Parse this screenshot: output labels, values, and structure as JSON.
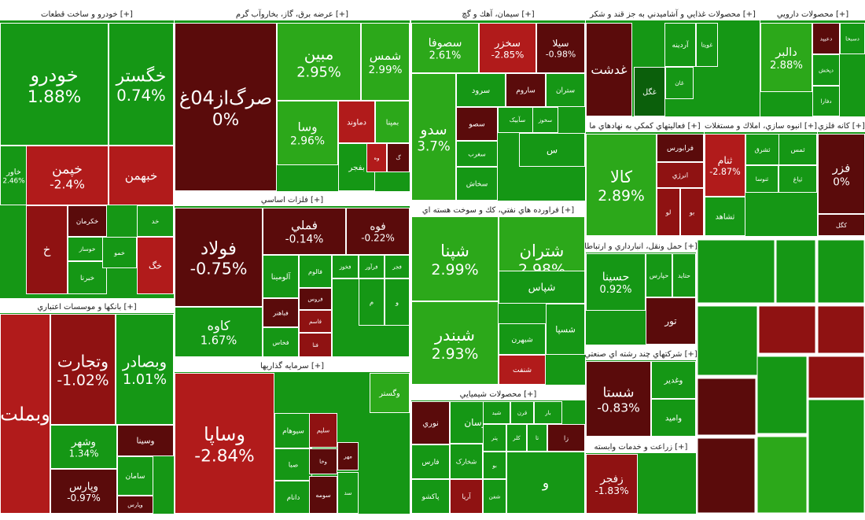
{
  "chart_data": {
    "type": "heatmap",
    "title": "",
    "value_unit": "%",
    "colors": {
      "strong_up": "#2ca81a",
      "up": "#159715",
      "flat_up": "#0b5f0b",
      "dark_down": "#5a0b0b",
      "down": "#8f1212",
      "strong_down": "#b11b1b",
      "header_bg": "#ffffff",
      "header_text": "#222222",
      "border": "#ffffff"
    },
    "sectors": [
      {
        "title": "خودرو و ساخت قطعات [+]",
        "stocks": [
          {
            "name": "خودرو",
            "change": 1.88
          },
          {
            "name": "خگستر",
            "change": 0.74
          },
          {
            "name": "خاور",
            "change": 2.46
          },
          {
            "name": "خپمن",
            "change": -2.4
          },
          {
            "name": "خبهمن",
            "change": null
          },
          {
            "name": "خکرمان",
            "change": null
          },
          {
            "name": "خوساز",
            "change": null
          },
          {
            "name": "خبرنا",
            "change": null
          },
          {
            "name": "خمو",
            "change": null
          },
          {
            "name": "خد",
            "change": null
          },
          {
            "name": "خگ",
            "change": null
          },
          {
            "name": "خ",
            "change": null
          }
        ]
      },
      {
        "title": "عرضه برق، گاز، بخاروآب گرم [+]",
        "stocks": [
          {
            "name": "صرگ‌از04غ",
            "change": 0
          },
          {
            "name": "مبین",
            "change": 2.95
          },
          {
            "name": "شمس",
            "change": 2.99
          },
          {
            "name": "وسا",
            "change": 2.96
          },
          {
            "name": "دماوند",
            "change": null
          },
          {
            "name": "بمپنا",
            "change": null
          },
          {
            "name": "بفجر",
            "change": null
          },
          {
            "name": "وه",
            "change": null
          },
          {
            "name": "گ",
            "change": null
          }
        ]
      },
      {
        "title": "فلزات اساسي [+]",
        "stocks": [
          {
            "name": "فولاد",
            "change": -0.75
          },
          {
            "name": "فملي",
            "change": -0.14
          },
          {
            "name": "فوه",
            "change": -0.22
          },
          {
            "name": "کاوه",
            "change": 1.67
          },
          {
            "name": "آلومينا",
            "change": null
          },
          {
            "name": "فالوم",
            "change": null
          },
          {
            "name": "فخوز",
            "change": null
          },
          {
            "name": "فرآور",
            "change": null
          },
          {
            "name": "فجر",
            "change": null
          },
          {
            "name": "فروس",
            "change": null
          },
          {
            "name": "فباهنر",
            "change": null
          },
          {
            "name": "فخاس",
            "change": null
          },
          {
            "name": "فاسم",
            "change": null
          },
          {
            "name": "فنا",
            "change": null
          },
          {
            "name": "فيتا",
            "change": null
          },
          {
            "name": "م",
            "change": null
          },
          {
            "name": "و",
            "change": null
          }
        ]
      },
      {
        "title": "سيمان، آهك و گچ [+]",
        "stocks": [
          {
            "name": "سصوفا",
            "change": 2.61
          },
          {
            "name": "سخزر",
            "change": -2.85
          },
          {
            "name": "سيلا",
            "change": -0.98
          },
          {
            "name": "سرود",
            "change": null
          },
          {
            "name": "ساروم",
            "change": null
          },
          {
            "name": "ستران",
            "change": null
          },
          {
            "name": "سصو",
            "change": null
          },
          {
            "name": "سآبيک",
            "change": null
          },
          {
            "name": "سخوز",
            "change": null
          },
          {
            "name": "سغرب",
            "change": null
          },
          {
            "name": "سخاش",
            "change": null
          },
          {
            "name": "س",
            "change": null
          },
          {
            "name": "سدو",
            "change": 3.7
          }
        ]
      },
      {
        "title": "فراورده هاي نفتي، كك و سوخت هسته اي [+]",
        "stocks": [
          {
            "name": "شپنا",
            "change": 2.99
          },
          {
            "name": "شبندر",
            "change": 2.93
          },
          {
            "name": "شتران",
            "change": 2.98
          },
          {
            "name": "شپاس",
            "change": null
          },
          {
            "name": "شبهرن",
            "change": null
          },
          {
            "name": "شسپا",
            "change": null
          },
          {
            "name": "شنفت",
            "change": null
          }
        ]
      },
      {
        "title": "محصولات شيميايي [+]",
        "stocks": [
          {
            "name": "نوري",
            "change": null
          },
          {
            "name": "پارسان",
            "change": null
          },
          {
            "name": "شخارک",
            "change": null
          },
          {
            "name": "فارس",
            "change": null
          },
          {
            "name": "آريا",
            "change": null
          },
          {
            "name": "پاکشو",
            "change": null
          },
          {
            "name": "شفن",
            "change": null
          },
          {
            "name": "شيد",
            "change": null
          },
          {
            "name": "قرن",
            "change": null
          },
          {
            "name": "بار",
            "change": null
          },
          {
            "name": "پتر",
            "change": null
          },
          {
            "name": "کلر",
            "change": null
          },
          {
            "name": "تا",
            "change": null
          },
          {
            "name": "زا",
            "change": null
          },
          {
            "name": "بو",
            "change": null
          },
          {
            "name": "و",
            "change": null
          }
        ]
      },
      {
        "title": "محصولات غذايي و آشاميدني به جز قند و شكر [+]",
        "stocks": [
          {
            "name": "آردينه",
            "change": null
          },
          {
            "name": "غويتا",
            "change": null
          },
          {
            "name": "غگل",
            "change": null
          },
          {
            "name": "غان",
            "change": null
          },
          {
            "name": "غدشت",
            "change": null
          }
        ]
      },
      {
        "title": "محصولات دارويي [+]",
        "stocks": [
          {
            "name": "دعبيد",
            "change": null
          },
          {
            "name": "دفارا",
            "change": null
          },
          {
            "name": "دپخش",
            "change": null
          },
          {
            "name": "دسبحا",
            "change": null
          },
          {
            "name": "دالبر",
            "change": 2.88
          }
        ]
      },
      {
        "title": "فعاليتهاي كمكي به نهادهاي ما [+]",
        "stocks": [
          {
            "name": "کالا",
            "change": 2.89
          },
          {
            "name": "فرابورس",
            "change": null
          },
          {
            "name": "انرژي",
            "change": null
          },
          {
            "name": "لو",
            "change": null
          },
          {
            "name": "بو",
            "change": null
          }
        ]
      },
      {
        "title": "انبوه سازي، املاك و مستغلات [+]",
        "stocks": [
          {
            "name": "ثنام",
            "change": -2.87
          },
          {
            "name": "ثشرق",
            "change": null
          },
          {
            "name": "ثمس",
            "change": null
          },
          {
            "name": "ثنوسا",
            "change": null
          },
          {
            "name": "ثباغ",
            "change": null
          },
          {
            "name": "ثشاهد",
            "change": null
          }
        ]
      },
      {
        "title": "كانه فلزي [+]",
        "stocks": [
          {
            "name": "فزر",
            "change": 0
          },
          {
            "name": "کگل",
            "change": null
          }
        ]
      },
      {
        "title": "بانكها و موسسات اعتباري [+]",
        "stocks": [
          {
            "name": "وبملت",
            "change": null
          },
          {
            "name": "وتجارت",
            "change": -1.02
          },
          {
            "name": "وبصادر",
            "change": 1.01
          },
          {
            "name": "وشهر",
            "change": 1.34
          },
          {
            "name": "وسينا",
            "change": null
          },
          {
            "name": "وپارس",
            "change": -0.97
          },
          {
            "name": "سامان",
            "change": null
          },
          {
            "name": "وپارس",
            "change": null
          }
        ]
      },
      {
        "title": "سرمايه گذاريها [+]",
        "stocks": [
          {
            "name": "وساپا",
            "change": -2.84
          },
          {
            "name": "وگستر",
            "change": null
          },
          {
            "name": "سيوهام",
            "change": null
          },
          {
            "name": "سليم",
            "change": null
          },
          {
            "name": "صبا",
            "change": null
          },
          {
            "name": "وخا",
            "change": null
          },
          {
            "name": "مهر",
            "change": null
          },
          {
            "name": "دانام",
            "change": null
          },
          {
            "name": "سومه",
            "change": null
          },
          {
            "name": "سد",
            "change": null
          }
        ]
      },
      {
        "title": "حمل ونقل، انبارداري و ارتباطا [+]",
        "stocks": [
          {
            "name": "حسينا",
            "change": 0.92
          },
          {
            "name": "حپارس",
            "change": null
          },
          {
            "name": "حتايد",
            "change": null
          },
          {
            "name": "تور",
            "change": null
          }
        ]
      },
      {
        "title": "شركتهاي چند رشته اي صنعتي [+]",
        "stocks": [
          {
            "name": "شستا",
            "change": -0.83
          },
          {
            "name": "وغدير",
            "change": null
          },
          {
            "name": "واميد",
            "change": null
          }
        ]
      },
      {
        "title": "زراعت و خدمات وابسته [+]",
        "stocks": [
          {
            "name": "زفجر",
            "change": -1.83
          }
        ]
      }
    ]
  }
}
